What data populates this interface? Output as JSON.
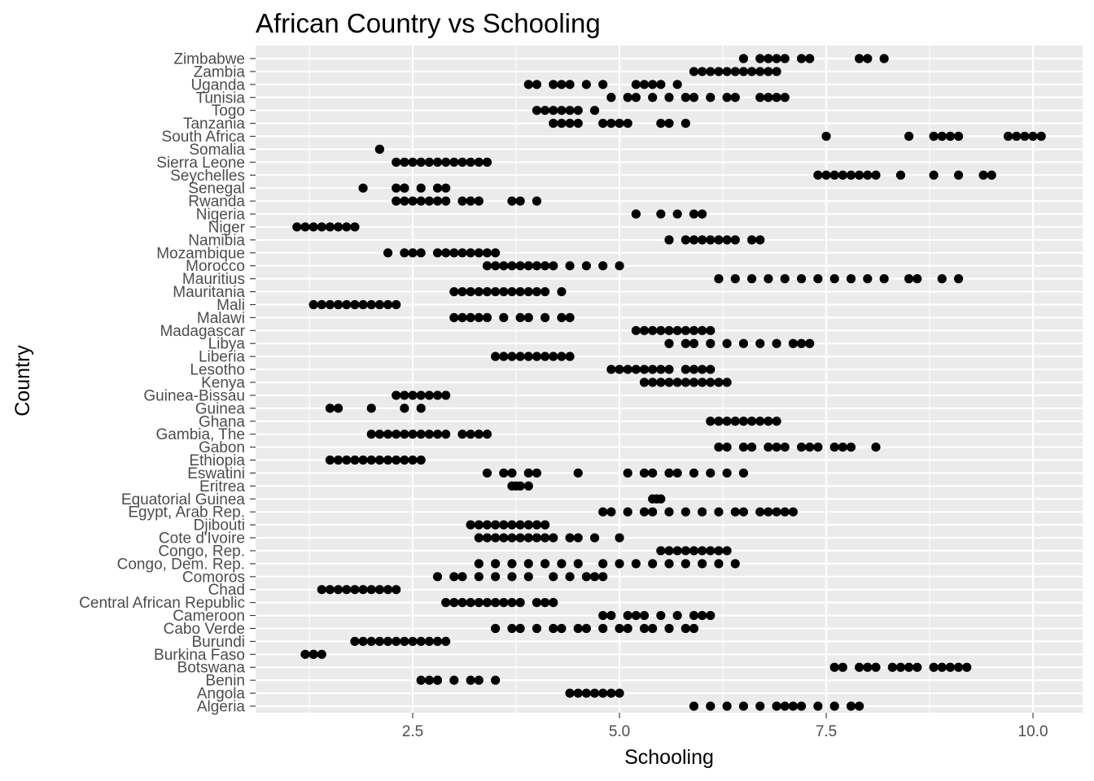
{
  "colors": {
    "panel_background": "#ebebeb",
    "grid_major": "#ffffff",
    "point": "#000000",
    "tick_text": "#4d4d4d",
    "text": "#000000"
  },
  "chart_data": {
    "type": "scatter",
    "title": "African Country vs Schooling",
    "xlabel": "Schooling",
    "ylabel": "Country",
    "xlim": [
      0.6,
      10.6
    ],
    "x_ticks": [
      2.5,
      5.0,
      7.5,
      10.0
    ],
    "x_tick_labels": [
      "2.5",
      "5.0",
      "7.5",
      "10.0"
    ],
    "grid": true,
    "legend": "none",
    "categories": [
      "Algeria",
      "Angola",
      "Benin",
      "Botswana",
      "Burkina Faso",
      "Burundi",
      "Cabo Verde",
      "Cameroon",
      "Central African Republic",
      "Chad",
      "Comoros",
      "Congo, Dem. Rep.",
      "Congo, Rep.",
      "Cote d'Ivoire",
      "Djibouti",
      "Egypt, Arab Rep.",
      "Equatorial Guinea",
      "Eritrea",
      "Eswatini",
      "Ethiopia",
      "Gabon",
      "Gambia, The",
      "Ghana",
      "Guinea",
      "Guinea-Bissau",
      "Kenya",
      "Lesotho",
      "Liberia",
      "Libya",
      "Madagascar",
      "Malawi",
      "Mali",
      "Mauritania",
      "Mauritius",
      "Morocco",
      "Mozambique",
      "Namibia",
      "Niger",
      "Nigeria",
      "Rwanda",
      "Senegal",
      "Seychelles",
      "Sierra Leone",
      "Somalia",
      "South Africa",
      "Tanzania",
      "Togo",
      "Tunisia",
      "Uganda",
      "Zambia",
      "Zimbabwe"
    ],
    "series": [
      {
        "country": "Algeria",
        "values": [
          5.9,
          6.1,
          6.3,
          6.5,
          6.7,
          6.9,
          7.0,
          7.1,
          7.2,
          7.4,
          7.6,
          7.8,
          7.9
        ]
      },
      {
        "country": "Angola",
        "values": [
          4.4,
          4.5,
          4.6,
          4.7,
          4.8,
          4.9,
          5.0
        ]
      },
      {
        "country": "Benin",
        "values": [
          2.6,
          2.7,
          2.8,
          2.8,
          3.0,
          3.2,
          3.3,
          3.5
        ]
      },
      {
        "country": "Botswana",
        "values": [
          7.6,
          7.7,
          7.9,
          8.0,
          8.1,
          8.3,
          8.4,
          8.5,
          8.6,
          8.8,
          8.9,
          9.0,
          9.1,
          9.2
        ]
      },
      {
        "country": "Burkina Faso",
        "values": [
          1.2,
          1.3,
          1.3,
          1.4
        ]
      },
      {
        "country": "Burundi",
        "values": [
          1.8,
          1.9,
          2.0,
          2.1,
          2.2,
          2.3,
          2.4,
          2.5,
          2.6,
          2.7,
          2.8,
          2.9
        ]
      },
      {
        "country": "Cabo Verde",
        "values": [
          3.5,
          3.7,
          3.8,
          4.0,
          4.2,
          4.3,
          4.5,
          4.6,
          4.8,
          5.0,
          5.1,
          5.3,
          5.4,
          5.6,
          5.8,
          5.9
        ]
      },
      {
        "country": "Cameroon",
        "values": [
          4.8,
          4.9,
          5.1,
          5.2,
          5.3,
          5.5,
          5.7,
          5.9,
          6.0,
          6.1
        ]
      },
      {
        "country": "Central African Republic",
        "values": [
          2.9,
          3.0,
          3.1,
          3.2,
          3.3,
          3.4,
          3.5,
          3.6,
          3.7,
          3.8,
          4.0,
          4.1,
          4.2
        ]
      },
      {
        "country": "Chad",
        "values": [
          1.4,
          1.5,
          1.6,
          1.7,
          1.8,
          1.9,
          2.0,
          2.1,
          2.2,
          2.3
        ]
      },
      {
        "country": "Comoros",
        "values": [
          2.8,
          3.0,
          3.1,
          3.3,
          3.5,
          3.7,
          3.9,
          4.2,
          4.4,
          4.6,
          4.7,
          4.8
        ]
      },
      {
        "country": "Congo, Dem. Rep.",
        "values": [
          3.3,
          3.5,
          3.7,
          3.9,
          4.1,
          4.3,
          4.5,
          4.8,
          5.0,
          5.2,
          5.4,
          5.6,
          5.8,
          6.0,
          6.2,
          6.4
        ]
      },
      {
        "country": "Congo, Rep.",
        "values": [
          5.5,
          5.6,
          5.7,
          5.8,
          5.9,
          6.0,
          6.1,
          6.2,
          6.3
        ]
      },
      {
        "country": "Cote d'Ivoire",
        "values": [
          3.3,
          3.4,
          3.5,
          3.6,
          3.7,
          3.8,
          3.9,
          4.0,
          4.1,
          4.2,
          4.4,
          4.5,
          4.7,
          5.0
        ]
      },
      {
        "country": "Djibouti",
        "values": [
          3.2,
          3.3,
          3.4,
          3.5,
          3.6,
          3.7,
          3.8,
          3.9,
          4.0,
          4.1
        ]
      },
      {
        "country": "Egypt, Arab Rep.",
        "values": [
          4.8,
          4.9,
          5.1,
          5.3,
          5.4,
          5.6,
          5.8,
          6.0,
          6.2,
          6.4,
          6.5,
          6.7,
          6.8,
          6.9,
          7.0,
          7.1
        ]
      },
      {
        "country": "Equatorial Guinea",
        "values": [
          5.4,
          5.45,
          5.5
        ]
      },
      {
        "country": "Eritrea",
        "values": [
          3.7,
          3.75,
          3.8,
          3.9
        ]
      },
      {
        "country": "Eswatini",
        "values": [
          3.4,
          3.6,
          3.7,
          3.9,
          4.0,
          4.5,
          5.1,
          5.3,
          5.4,
          5.6,
          5.7,
          5.9,
          6.1,
          6.3,
          6.5
        ]
      },
      {
        "country": "Ethiopia",
        "values": [
          1.5,
          1.6,
          1.7,
          1.8,
          1.9,
          2.0,
          2.1,
          2.2,
          2.3,
          2.4,
          2.5,
          2.6
        ]
      },
      {
        "country": "Gabon",
        "values": [
          6.2,
          6.3,
          6.5,
          6.6,
          6.8,
          6.9,
          7.0,
          7.2,
          7.3,
          7.4,
          7.6,
          7.7,
          7.8,
          8.1
        ]
      },
      {
        "country": "Gambia, The",
        "values": [
          2.0,
          2.1,
          2.2,
          2.3,
          2.4,
          2.5,
          2.6,
          2.7,
          2.8,
          2.9,
          3.1,
          3.2,
          3.3,
          3.4
        ]
      },
      {
        "country": "Ghana",
        "values": [
          6.1,
          6.2,
          6.3,
          6.4,
          6.5,
          6.6,
          6.7,
          6.8,
          6.9
        ]
      },
      {
        "country": "Guinea",
        "values": [
          1.5,
          1.6,
          2.0,
          2.4,
          2.6
        ]
      },
      {
        "country": "Guinea-Bissau",
        "values": [
          2.3,
          2.4,
          2.5,
          2.6,
          2.7,
          2.8,
          2.9
        ]
      },
      {
        "country": "Kenya",
        "values": [
          5.3,
          5.4,
          5.5,
          5.6,
          5.7,
          5.8,
          5.9,
          6.0,
          6.1,
          6.2,
          6.3
        ]
      },
      {
        "country": "Lesotho",
        "values": [
          4.9,
          5.0,
          5.1,
          5.2,
          5.3,
          5.4,
          5.5,
          5.6,
          5.8,
          5.9,
          6.0,
          6.1
        ]
      },
      {
        "country": "Liberia",
        "values": [
          3.5,
          3.6,
          3.7,
          3.8,
          3.9,
          4.0,
          4.1,
          4.2,
          4.3,
          4.4
        ]
      },
      {
        "country": "Libya",
        "values": [
          5.6,
          5.8,
          5.9,
          6.1,
          6.3,
          6.5,
          6.7,
          6.9,
          7.1,
          7.2,
          7.3
        ]
      },
      {
        "country": "Madagascar",
        "values": [
          5.2,
          5.3,
          5.4,
          5.5,
          5.6,
          5.7,
          5.8,
          5.9,
          6.0,
          6.1
        ]
      },
      {
        "country": "Malawi",
        "values": [
          3.0,
          3.1,
          3.2,
          3.3,
          3.4,
          3.6,
          3.8,
          3.9,
          4.1,
          4.3,
          4.4
        ]
      },
      {
        "country": "Mali",
        "values": [
          1.3,
          1.4,
          1.5,
          1.6,
          1.7,
          1.8,
          1.9,
          2.0,
          2.1,
          2.2,
          2.3
        ]
      },
      {
        "country": "Mauritania",
        "values": [
          3.0,
          3.1,
          3.2,
          3.3,
          3.4,
          3.5,
          3.6,
          3.7,
          3.8,
          3.9,
          4.0,
          4.1,
          4.3
        ]
      },
      {
        "country": "Mauritius",
        "values": [
          6.2,
          6.4,
          6.6,
          6.8,
          7.0,
          7.2,
          7.4,
          7.6,
          7.8,
          8.0,
          8.2,
          8.5,
          8.6,
          8.9,
          9.1
        ]
      },
      {
        "country": "Morocco",
        "values": [
          3.4,
          3.5,
          3.6,
          3.7,
          3.8,
          3.9,
          4.0,
          4.1,
          4.2,
          4.4,
          4.6,
          4.8,
          5.0
        ]
      },
      {
        "country": "Mozambique",
        "values": [
          2.2,
          2.4,
          2.5,
          2.6,
          2.8,
          2.9,
          3.0,
          3.1,
          3.2,
          3.3,
          3.4,
          3.5
        ]
      },
      {
        "country": "Namibia",
        "values": [
          5.6,
          5.8,
          5.9,
          6.0,
          6.1,
          6.2,
          6.3,
          6.4,
          6.6,
          6.7
        ]
      },
      {
        "country": "Niger",
        "values": [
          1.1,
          1.2,
          1.3,
          1.4,
          1.5,
          1.6,
          1.7,
          1.8
        ]
      },
      {
        "country": "Nigeria",
        "values": [
          5.2,
          5.2,
          5.5,
          5.7,
          5.9,
          6.0
        ]
      },
      {
        "country": "Rwanda",
        "values": [
          2.3,
          2.4,
          2.5,
          2.6,
          2.7,
          2.8,
          2.9,
          3.1,
          3.2,
          3.3,
          3.7,
          3.8,
          4.0
        ]
      },
      {
        "country": "Senegal",
        "values": [
          1.9,
          2.3,
          2.4,
          2.4,
          2.6,
          2.8,
          2.9
        ]
      },
      {
        "country": "Seychelles",
        "values": [
          7.4,
          7.5,
          7.6,
          7.7,
          7.8,
          7.9,
          8.0,
          8.1,
          8.4,
          8.8,
          9.1,
          9.4,
          9.5
        ]
      },
      {
        "country": "Sierra Leone",
        "values": [
          2.3,
          2.4,
          2.5,
          2.6,
          2.7,
          2.8,
          2.9,
          3.0,
          3.1,
          3.2,
          3.3,
          3.4
        ]
      },
      {
        "country": "Somalia",
        "values": [
          2.1,
          2.1
        ]
      },
      {
        "country": "South Africa",
        "values": [
          7.5,
          8.5,
          8.8,
          8.9,
          9.0,
          9.1,
          9.7,
          9.8,
          9.9,
          10.0,
          10.1
        ]
      },
      {
        "country": "Tanzania",
        "values": [
          4.2,
          4.3,
          4.4,
          4.5,
          4.8,
          4.9,
          5.0,
          5.1,
          5.5,
          5.6,
          5.8
        ]
      },
      {
        "country": "Togo",
        "values": [
          4.0,
          4.1,
          4.2,
          4.3,
          4.4,
          4.5,
          4.7
        ]
      },
      {
        "country": "Tunisia",
        "values": [
          4.9,
          5.1,
          5.2,
          5.4,
          5.6,
          5.8,
          5.9,
          6.1,
          6.3,
          6.4,
          6.7,
          6.8,
          6.9,
          7.0
        ]
      },
      {
        "country": "Uganda",
        "values": [
          3.9,
          4.0,
          4.2,
          4.3,
          4.4,
          4.6,
          4.8,
          5.2,
          5.3,
          5.4,
          5.5,
          5.7
        ]
      },
      {
        "country": "Zambia",
        "values": [
          5.9,
          6.0,
          6.1,
          6.2,
          6.3,
          6.4,
          6.5,
          6.6,
          6.7,
          6.8,
          6.9
        ]
      },
      {
        "country": "Zimbabwe",
        "values": [
          6.5,
          6.7,
          6.8,
          6.9,
          7.0,
          7.2,
          7.3,
          7.9,
          8.0,
          8.2
        ]
      }
    ]
  }
}
